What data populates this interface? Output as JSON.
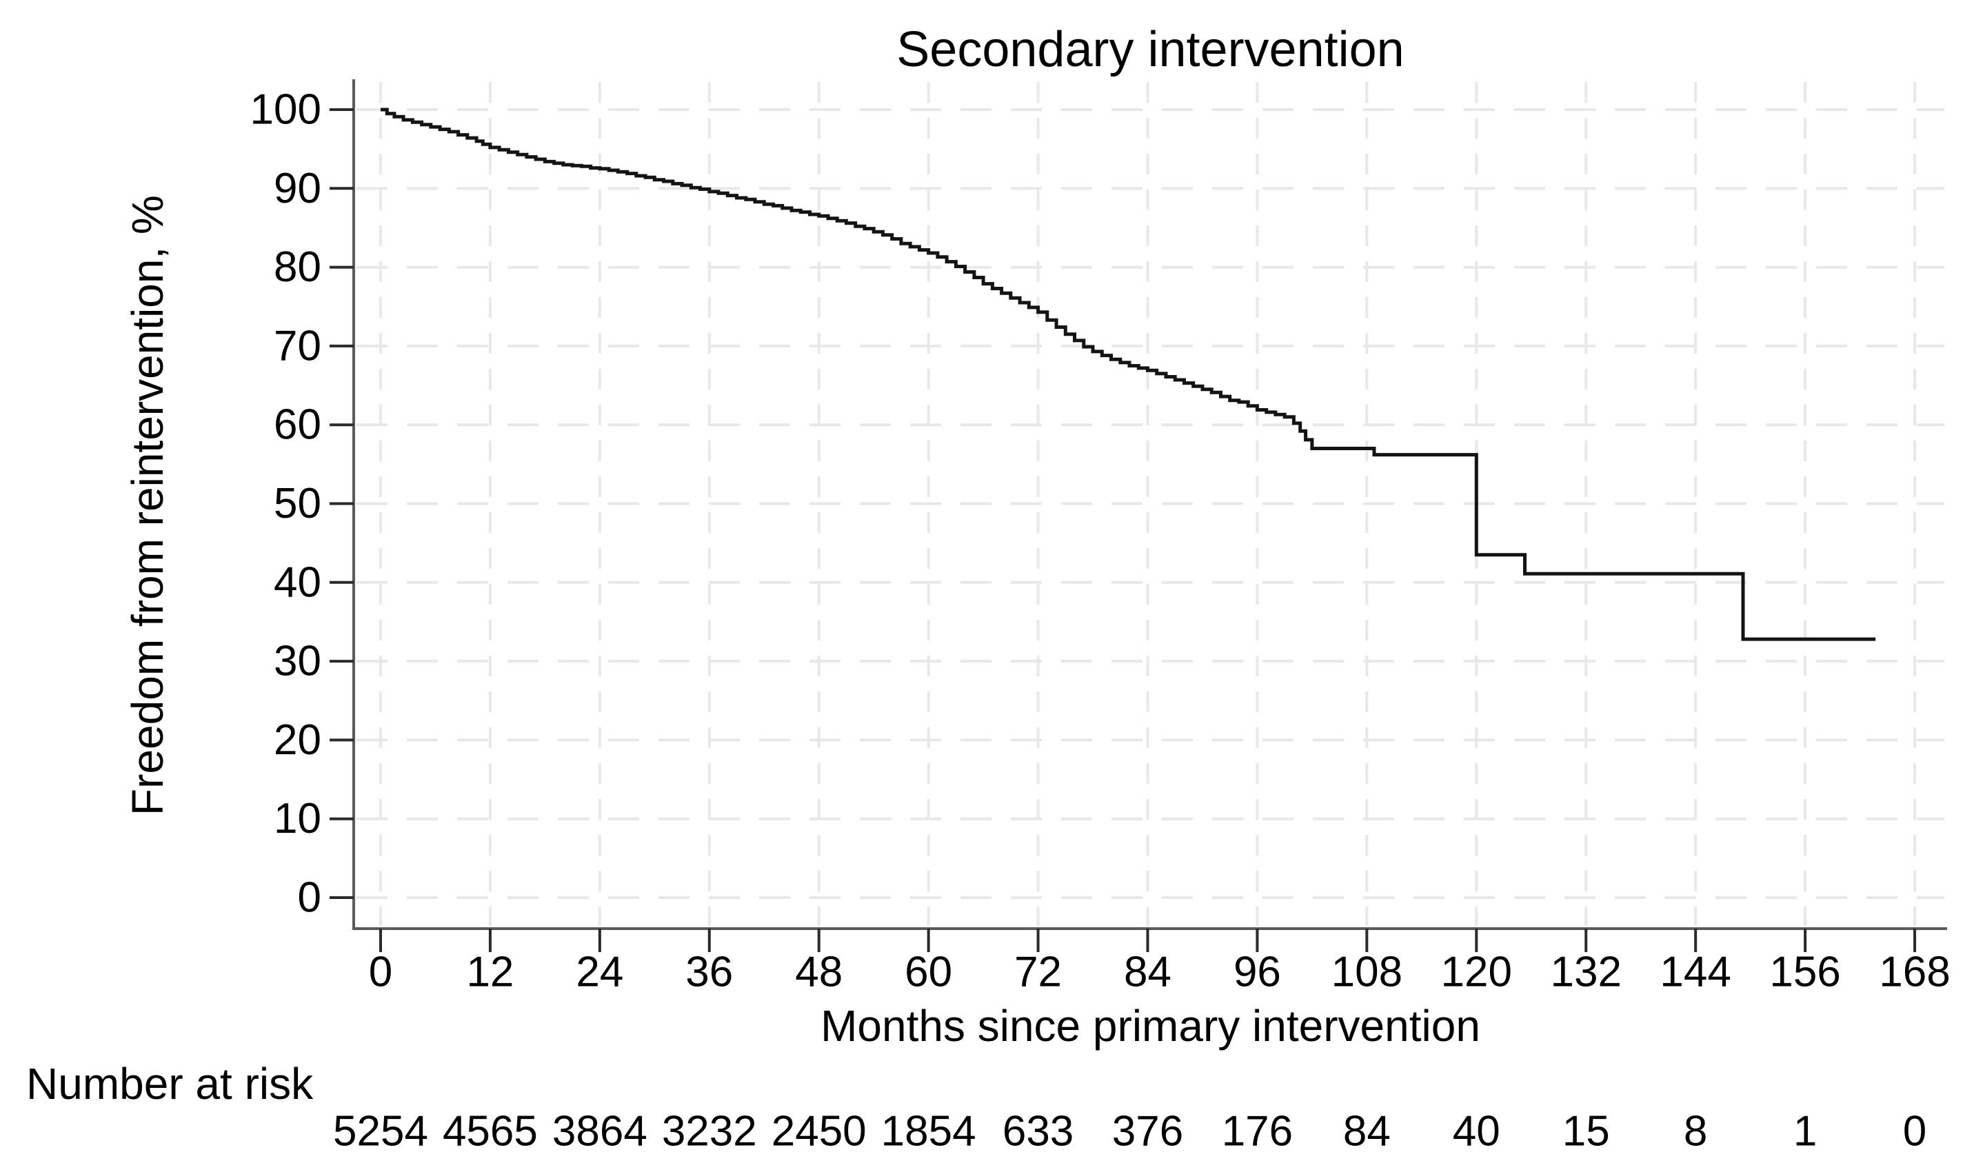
{
  "figure": {
    "title": "Secondary intervention",
    "background_color": "#ffffff",
    "text_color": "#000000"
  },
  "y_axis": {
    "label": "Freedom from reintervention, %",
    "ticks": [
      100,
      90,
      80,
      70,
      60,
      50,
      40,
      30,
      20,
      10,
      0
    ]
  },
  "x_axis": {
    "label": "Months since primary intervention",
    "ticks": [
      0,
      12,
      24,
      36,
      48,
      60,
      72,
      84,
      96,
      108,
      120,
      132,
      144,
      156,
      168
    ]
  },
  "risk_table": {
    "label": "Number at risk",
    "months": [
      0,
      12,
      24,
      36,
      48,
      60,
      72,
      84,
      96,
      108,
      120,
      132,
      144,
      156,
      168
    ],
    "values": [
      "5254",
      "4565",
      "3864",
      "3232",
      "2450",
      "1854",
      "633",
      "376",
      "176",
      "84",
      "40",
      "15",
      "8",
      "1",
      "0"
    ]
  },
  "chart_data": {
    "type": "line",
    "subtype": "kaplan-meier-step",
    "title": "Secondary intervention",
    "xlabel": "Months since primary intervention",
    "ylabel": "Freedom from reintervention, %",
    "xlim": [
      0,
      168
    ],
    "ylim": [
      0,
      100
    ],
    "grid": true,
    "legend_position": "none",
    "curve_color": "#141414",
    "axis_color": "#5a5a5a",
    "tick_color": "#2a2a2a",
    "grid_color": "#e8e8e8",
    "series": [
      {
        "name": "Freedom from reintervention",
        "end_month": 163.7,
        "steps": [
          [
            0,
            100
          ],
          [
            0.7,
            99.5
          ],
          [
            1.5,
            99.1
          ],
          [
            2.5,
            98.7
          ],
          [
            3.5,
            98.4
          ],
          [
            4.5,
            98.1
          ],
          [
            5.5,
            97.8
          ],
          [
            6.5,
            97.5
          ],
          [
            7.5,
            97.2
          ],
          [
            8.5,
            96.8
          ],
          [
            9.5,
            96.4
          ],
          [
            10.5,
            96.0
          ],
          [
            11.2,
            95.6
          ],
          [
            12,
            95.2
          ],
          [
            13,
            94.9
          ],
          [
            14,
            94.6
          ],
          [
            15,
            94.3
          ],
          [
            16,
            94.0
          ],
          [
            17,
            93.7
          ],
          [
            18,
            93.4
          ],
          [
            19,
            93.2
          ],
          [
            20,
            93.0
          ],
          [
            21,
            92.9
          ],
          [
            22,
            92.8
          ],
          [
            23,
            92.6
          ],
          [
            24,
            92.5
          ],
          [
            25,
            92.3
          ],
          [
            26,
            92.1
          ],
          [
            27,
            91.9
          ],
          [
            28,
            91.6
          ],
          [
            29,
            91.4
          ],
          [
            30,
            91.1
          ],
          [
            31,
            90.9
          ],
          [
            32,
            90.6
          ],
          [
            33,
            90.4
          ],
          [
            34,
            90.1
          ],
          [
            35,
            89.9
          ],
          [
            36,
            89.6
          ],
          [
            37,
            89.4
          ],
          [
            38,
            89.1
          ],
          [
            39,
            88.8
          ],
          [
            40,
            88.6
          ],
          [
            41,
            88.3
          ],
          [
            42,
            88.0
          ],
          [
            43,
            87.8
          ],
          [
            44,
            87.5
          ],
          [
            45,
            87.2
          ],
          [
            46,
            87.0
          ],
          [
            47,
            86.7
          ],
          [
            48,
            86.5
          ],
          [
            49,
            86.2
          ],
          [
            50,
            85.9
          ],
          [
            51,
            85.6
          ],
          [
            52,
            85.2
          ],
          [
            53,
            84.9
          ],
          [
            54,
            84.5
          ],
          [
            55,
            84.1
          ],
          [
            56,
            83.6
          ],
          [
            57,
            83.0
          ],
          [
            58,
            82.6
          ],
          [
            59,
            82.2
          ],
          [
            60,
            81.8
          ],
          [
            61,
            81.3
          ],
          [
            62,
            80.7
          ],
          [
            63,
            80.1
          ],
          [
            64,
            79.4
          ],
          [
            65,
            78.7
          ],
          [
            66,
            77.9
          ],
          [
            67,
            77.3
          ],
          [
            68,
            76.7
          ],
          [
            69,
            76.1
          ],
          [
            70,
            75.5
          ],
          [
            71,
            74.9
          ],
          [
            72,
            74.3
          ],
          [
            73,
            73.3
          ],
          [
            74,
            72.4
          ],
          [
            75,
            71.5
          ],
          [
            76,
            70.7
          ],
          [
            77,
            69.9
          ],
          [
            78,
            69.3
          ],
          [
            79,
            68.8
          ],
          [
            80,
            68.3
          ],
          [
            81,
            67.9
          ],
          [
            82,
            67.5
          ],
          [
            83,
            67.2
          ],
          [
            84,
            66.9
          ],
          [
            85,
            66.5
          ],
          [
            86,
            66.1
          ],
          [
            87,
            65.7
          ],
          [
            88,
            65.3
          ],
          [
            89,
            64.9
          ],
          [
            90,
            64.5
          ],
          [
            91,
            64.1
          ],
          [
            92,
            63.6
          ],
          [
            93,
            63.1
          ],
          [
            94,
            62.9
          ],
          [
            95,
            62.4
          ],
          [
            96,
            61.9
          ],
          [
            97,
            61.6
          ],
          [
            98,
            61.3
          ],
          [
            99,
            61.0
          ],
          [
            100,
            60.2
          ],
          [
            100.7,
            59.2
          ],
          [
            101.3,
            58.1
          ],
          [
            102,
            57.0
          ],
          [
            108.8,
            56.2
          ],
          [
            120,
            43.5
          ],
          [
            125.3,
            41.1
          ],
          [
            149.2,
            32.8
          ]
        ]
      }
    ]
  }
}
